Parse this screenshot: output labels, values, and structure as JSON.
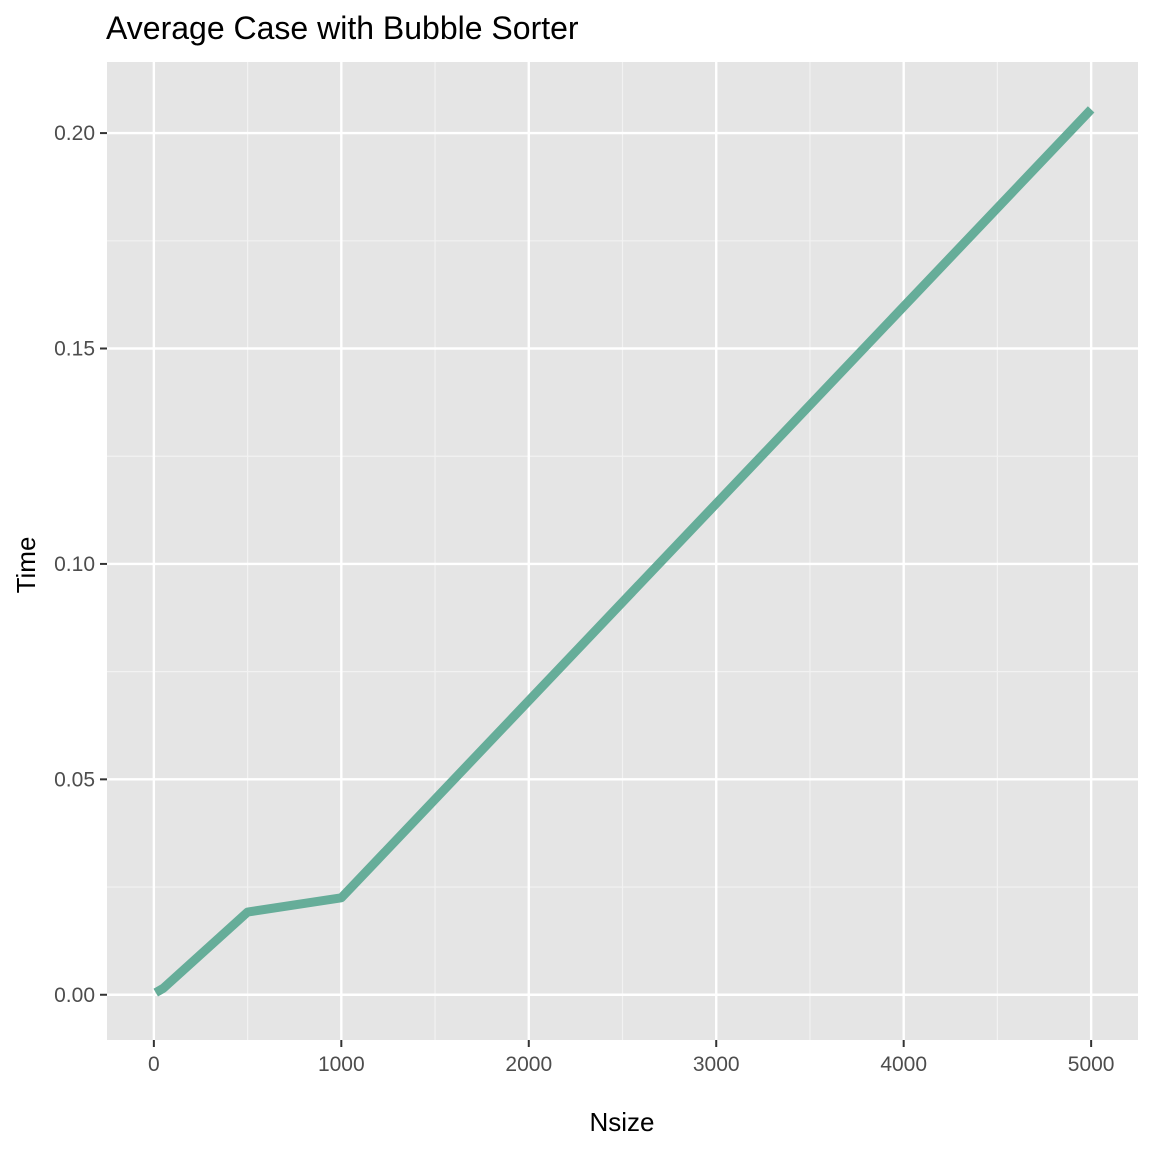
{
  "chart_data": {
    "type": "line",
    "title": "Average Case with Bubble Sorter",
    "xlabel": "Nsize",
    "ylabel": "Time",
    "xlim": [
      -250,
      5250
    ],
    "ylim": [
      -0.0105,
      0.2165
    ],
    "x_ticks": [
      {
        "value": 0,
        "label": "0"
      },
      {
        "value": 1000,
        "label": "1000"
      },
      {
        "value": 2000,
        "label": "2000"
      },
      {
        "value": 3000,
        "label": "3000"
      },
      {
        "value": 4000,
        "label": "4000"
      },
      {
        "value": 5000,
        "label": "5000"
      }
    ],
    "x_minor_ticks": [
      500,
      1500,
      2500,
      3500,
      4500
    ],
    "y_ticks": [
      {
        "value": 0.0,
        "label": "0.00"
      },
      {
        "value": 0.05,
        "label": "0.05"
      },
      {
        "value": 0.1,
        "label": "0.10"
      },
      {
        "value": 0.15,
        "label": "0.15"
      },
      {
        "value": 0.2,
        "label": "0.20"
      }
    ],
    "y_minor_ticks": [
      0.025,
      0.075,
      0.125,
      0.175
    ],
    "grid": true,
    "legend": "none",
    "series": [
      {
        "color": "#66ad99",
        "x": [
          10,
          50,
          500,
          1000,
          5000
        ],
        "y": [
          0.0005,
          0.0015,
          0.0192,
          0.0225,
          0.2055
        ]
      }
    ]
  },
  "colors": {
    "panel_background": "#e5e5e5",
    "grid_major": "#ffffff",
    "grid_minor": "#f2f2f2",
    "tick_mark": "#333333",
    "tick_text": "#4d4d4d"
  }
}
